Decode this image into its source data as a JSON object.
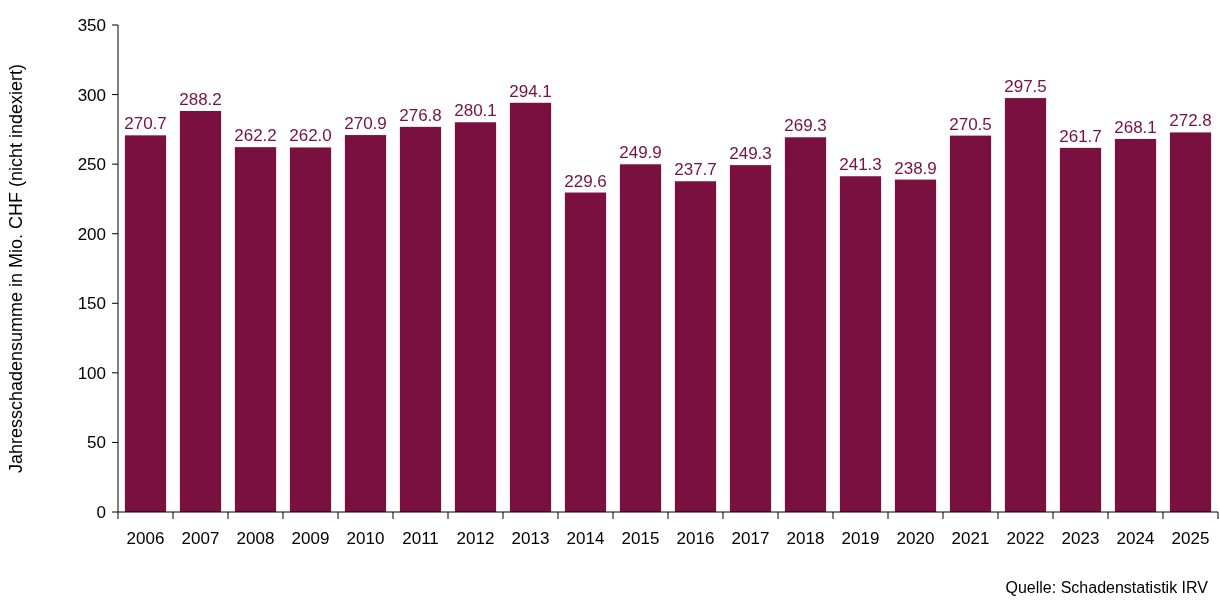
{
  "chart_data": {
    "type": "bar",
    "ylabel": "Jahresschadensumme in Mio. CHF (nicht indexiert)",
    "categories": [
      "2006",
      "2007",
      "2008",
      "2009",
      "2010",
      "2011",
      "2012",
      "2013",
      "2014",
      "2015",
      "2016",
      "2017",
      "2018",
      "2019",
      "2020",
      "2021",
      "2022",
      "2023",
      "2024",
      "2025"
    ],
    "values": [
      270.7,
      288.2,
      262.2,
      262.0,
      270.9,
      276.8,
      280.1,
      294.1,
      229.6,
      249.9,
      237.7,
      249.3,
      269.3,
      241.3,
      238.9,
      270.5,
      297.5,
      261.7,
      268.1,
      272.8
    ],
    "value_labels": [
      "270.7",
      "288.2",
      "262.2",
      "262.0",
      "270.9",
      "276.8",
      "280.1",
      "294.1",
      "229.6",
      "249.9",
      "237.7",
      "249.3",
      "269.3",
      "241.3",
      "238.9",
      "270.5",
      "297.5",
      "261.7",
      "268.1",
      "272.8"
    ],
    "color": "#7a1040",
    "ylim": [
      0,
      350
    ],
    "yticks": [
      0,
      50,
      100,
      150,
      200,
      250,
      300,
      350
    ],
    "grid": false,
    "annotations": [
      "Quelle: Schadenstatistik IRV"
    ]
  }
}
